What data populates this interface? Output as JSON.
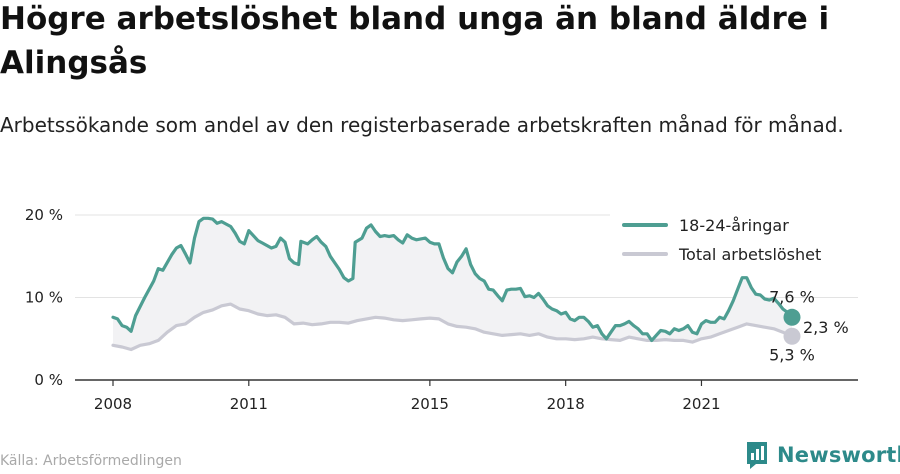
{
  "header": {
    "title": "Högre arbetslöshet bland unga än bland äldre i Alingsås",
    "subtitle": "Arbetssökande som andel av den registerbaserade arbetskraften månad för månad."
  },
  "footer": {
    "source": "Källa: Arbetsförmedlingen",
    "brand": "Newsworthy",
    "brand_icon": "newsworthy-logo-icon"
  },
  "colors": {
    "youth": "#4e9e92",
    "total": "#c9c9d3",
    "gap_fill": "#f2f2f4",
    "grid": "#e3e3e3",
    "brand": "#2d8a8a"
  },
  "chart_data": {
    "type": "line",
    "x_unit": "year",
    "xlim": [
      2007.7,
      2022.6
    ],
    "ylim": [
      0,
      20
    ],
    "y_ticks": [
      0,
      10,
      20
    ],
    "y_tick_labels": [
      "0 %",
      "10 %",
      "20 %"
    ],
    "x_ticks": [
      2008,
      2011,
      2015,
      2018,
      2021
    ],
    "x_tick_labels": [
      "2008",
      "2011",
      "2015",
      "2018",
      "2021"
    ],
    "grid": "horizontal",
    "legend_position": "top-right",
    "difference_label": "2,3 %",
    "series": [
      {
        "name": "18-24-åringar",
        "color_key": "youth",
        "end_label": "7,6 %",
        "points": [
          [
            2008.0,
            7.6
          ],
          [
            2008.1,
            7.4
          ],
          [
            2008.2,
            6.6
          ],
          [
            2008.3,
            6.4
          ],
          [
            2008.4,
            5.9
          ],
          [
            2008.5,
            7.8
          ],
          [
            2008.7,
            10.0
          ],
          [
            2008.9,
            12.0
          ],
          [
            2009.0,
            13.5
          ],
          [
            2009.1,
            13.3
          ],
          [
            2009.3,
            15.2
          ],
          [
            2009.4,
            16.0
          ],
          [
            2009.5,
            16.3
          ],
          [
            2009.6,
            15.3
          ],
          [
            2009.7,
            14.2
          ],
          [
            2009.8,
            17.2
          ],
          [
            2009.9,
            19.2
          ],
          [
            2010.0,
            19.6
          ],
          [
            2010.1,
            19.6
          ],
          [
            2010.2,
            19.5
          ],
          [
            2010.3,
            19.0
          ],
          [
            2010.4,
            19.2
          ],
          [
            2010.5,
            18.9
          ],
          [
            2010.6,
            18.6
          ],
          [
            2010.7,
            17.8
          ],
          [
            2010.8,
            16.8
          ],
          [
            2010.9,
            16.5
          ],
          [
            2011.0,
            18.1
          ],
          [
            2011.1,
            17.5
          ],
          [
            2011.2,
            16.9
          ],
          [
            2011.3,
            16.6
          ],
          [
            2011.4,
            16.3
          ],
          [
            2011.5,
            16.0
          ],
          [
            2011.6,
            16.2
          ],
          [
            2011.7,
            17.2
          ],
          [
            2011.8,
            16.7
          ],
          [
            2011.9,
            14.7
          ],
          [
            2012.0,
            14.2
          ],
          [
            2012.1,
            14.0
          ],
          [
            2012.15,
            16.8
          ],
          [
            2012.3,
            16.5
          ],
          [
            2012.4,
            17.0
          ],
          [
            2012.5,
            17.4
          ],
          [
            2012.6,
            16.7
          ],
          [
            2012.7,
            16.2
          ],
          [
            2012.8,
            15.0
          ],
          [
            2012.9,
            14.2
          ],
          [
            2013.0,
            13.4
          ],
          [
            2013.1,
            12.4
          ],
          [
            2013.2,
            12.0
          ],
          [
            2013.3,
            12.3
          ],
          [
            2013.35,
            16.7
          ],
          [
            2013.5,
            17.2
          ],
          [
            2013.6,
            18.4
          ],
          [
            2013.7,
            18.8
          ],
          [
            2013.8,
            18.0
          ],
          [
            2013.9,
            17.4
          ],
          [
            2014.0,
            17.5
          ],
          [
            2014.1,
            17.4
          ],
          [
            2014.2,
            17.5
          ],
          [
            2014.3,
            17.0
          ],
          [
            2014.4,
            16.6
          ],
          [
            2014.5,
            17.6
          ],
          [
            2014.6,
            17.2
          ],
          [
            2014.7,
            17.0
          ],
          [
            2014.8,
            17.1
          ],
          [
            2014.9,
            17.2
          ],
          [
            2015.0,
            16.7
          ],
          [
            2015.1,
            16.5
          ],
          [
            2015.2,
            16.5
          ],
          [
            2015.3,
            14.8
          ],
          [
            2015.4,
            13.5
          ],
          [
            2015.5,
            13.0
          ],
          [
            2015.6,
            14.3
          ],
          [
            2015.7,
            15.0
          ],
          [
            2015.8,
            15.9
          ],
          [
            2015.9,
            14.0
          ],
          [
            2016.0,
            12.9
          ],
          [
            2016.1,
            12.3
          ],
          [
            2016.2,
            12.0
          ],
          [
            2016.3,
            11.0
          ],
          [
            2016.4,
            10.9
          ],
          [
            2016.5,
            10.2
          ],
          [
            2016.6,
            9.6
          ],
          [
            2016.7,
            10.9
          ],
          [
            2016.8,
            11.0
          ],
          [
            2016.9,
            11.0
          ],
          [
            2017.0,
            11.1
          ],
          [
            2017.1,
            10.1
          ],
          [
            2017.2,
            10.2
          ],
          [
            2017.3,
            10.0
          ],
          [
            2017.4,
            10.5
          ],
          [
            2017.5,
            9.8
          ],
          [
            2017.6,
            9.0
          ],
          [
            2017.7,
            8.6
          ],
          [
            2017.8,
            8.4
          ],
          [
            2017.9,
            8.0
          ],
          [
            2018.0,
            8.2
          ],
          [
            2018.1,
            7.4
          ],
          [
            2018.2,
            7.2
          ],
          [
            2018.3,
            7.6
          ],
          [
            2018.4,
            7.6
          ],
          [
            2018.5,
            7.1
          ],
          [
            2018.6,
            6.4
          ],
          [
            2018.7,
            6.6
          ],
          [
            2018.8,
            5.6
          ],
          [
            2018.9,
            5.0
          ],
          [
            2019.0,
            5.8
          ],
          [
            2019.1,
            6.6
          ],
          [
            2019.2,
            6.6
          ],
          [
            2019.3,
            6.8
          ],
          [
            2019.4,
            7.1
          ],
          [
            2019.5,
            6.6
          ],
          [
            2019.6,
            6.2
          ],
          [
            2019.7,
            5.6
          ],
          [
            2019.8,
            5.6
          ],
          [
            2019.9,
            4.8
          ],
          [
            2020.0,
            5.4
          ],
          [
            2020.1,
            6.0
          ],
          [
            2020.2,
            5.9
          ],
          [
            2020.3,
            5.6
          ],
          [
            2020.4,
            6.2
          ],
          [
            2020.5,
            6.0
          ],
          [
            2020.6,
            6.2
          ],
          [
            2020.7,
            6.6
          ],
          [
            2020.8,
            5.8
          ],
          [
            2020.9,
            5.6
          ],
          [
            2021.0,
            6.8
          ],
          [
            2021.1,
            7.2
          ],
          [
            2021.2,
            7.0
          ],
          [
            2021.3,
            7.0
          ],
          [
            2021.4,
            7.6
          ],
          [
            2021.5,
            7.4
          ],
          [
            2021.6,
            8.4
          ],
          [
            2021.7,
            9.6
          ],
          [
            2021.8,
            11.0
          ],
          [
            2021.9,
            12.4
          ],
          [
            2022.0,
            12.4
          ],
          [
            2022.1,
            11.2
          ],
          [
            2022.2,
            10.4
          ],
          [
            2022.3,
            10.3
          ],
          [
            2022.4,
            9.8
          ],
          [
            2022.5,
            9.7
          ],
          [
            2022.6,
            9.9
          ],
          [
            2022.7,
            9.3
          ],
          [
            2022.8,
            8.6
          ],
          [
            2022.9,
            8.2
          ],
          [
            2023.0,
            7.6
          ]
        ]
      },
      {
        "name": "Total arbetslöshet",
        "color_key": "total",
        "end_label": "5,3 %",
        "points": [
          [
            2008.0,
            4.2
          ],
          [
            2008.2,
            4.0
          ],
          [
            2008.4,
            3.7
          ],
          [
            2008.6,
            4.2
          ],
          [
            2008.8,
            4.4
          ],
          [
            2009.0,
            4.8
          ],
          [
            2009.2,
            5.8
          ],
          [
            2009.4,
            6.6
          ],
          [
            2009.6,
            6.8
          ],
          [
            2009.8,
            7.6
          ],
          [
            2010.0,
            8.2
          ],
          [
            2010.2,
            8.5
          ],
          [
            2010.4,
            9.0
          ],
          [
            2010.6,
            9.2
          ],
          [
            2010.8,
            8.6
          ],
          [
            2011.0,
            8.4
          ],
          [
            2011.2,
            8.0
          ],
          [
            2011.4,
            7.8
          ],
          [
            2011.6,
            7.9
          ],
          [
            2011.8,
            7.6
          ],
          [
            2012.0,
            6.8
          ],
          [
            2012.2,
            6.9
          ],
          [
            2012.4,
            6.7
          ],
          [
            2012.6,
            6.8
          ],
          [
            2012.8,
            7.0
          ],
          [
            2013.0,
            7.0
          ],
          [
            2013.2,
            6.9
          ],
          [
            2013.4,
            7.2
          ],
          [
            2013.6,
            7.4
          ],
          [
            2013.8,
            7.6
          ],
          [
            2014.0,
            7.5
          ],
          [
            2014.2,
            7.3
          ],
          [
            2014.4,
            7.2
          ],
          [
            2014.6,
            7.3
          ],
          [
            2014.8,
            7.4
          ],
          [
            2015.0,
            7.5
          ],
          [
            2015.2,
            7.4
          ],
          [
            2015.4,
            6.8
          ],
          [
            2015.6,
            6.5
          ],
          [
            2015.8,
            6.4
          ],
          [
            2016.0,
            6.2
          ],
          [
            2016.2,
            5.8
          ],
          [
            2016.4,
            5.6
          ],
          [
            2016.6,
            5.4
          ],
          [
            2016.8,
            5.5
          ],
          [
            2017.0,
            5.6
          ],
          [
            2017.2,
            5.4
          ],
          [
            2017.4,
            5.6
          ],
          [
            2017.6,
            5.2
          ],
          [
            2017.8,
            5.0
          ],
          [
            2018.0,
            5.0
          ],
          [
            2018.2,
            4.9
          ],
          [
            2018.4,
            5.0
          ],
          [
            2018.6,
            5.2
          ],
          [
            2018.8,
            5.0
          ],
          [
            2019.0,
            4.9
          ],
          [
            2019.2,
            4.8
          ],
          [
            2019.4,
            5.2
          ],
          [
            2019.6,
            5.0
          ],
          [
            2019.8,
            4.8
          ],
          [
            2020.0,
            4.8
          ],
          [
            2020.2,
            4.9
          ],
          [
            2020.4,
            4.8
          ],
          [
            2020.6,
            4.8
          ],
          [
            2020.8,
            4.6
          ],
          [
            2021.0,
            5.0
          ],
          [
            2021.2,
            5.2
          ],
          [
            2021.4,
            5.6
          ],
          [
            2021.6,
            6.0
          ],
          [
            2021.8,
            6.4
          ],
          [
            2022.0,
            6.8
          ],
          [
            2022.2,
            6.6
          ],
          [
            2022.4,
            6.4
          ],
          [
            2022.6,
            6.2
          ],
          [
            2022.8,
            5.8
          ],
          [
            2023.0,
            5.3
          ]
        ]
      }
    ]
  }
}
